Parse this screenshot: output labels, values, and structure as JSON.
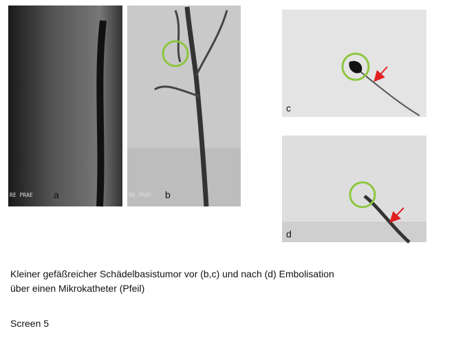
{
  "panels": [
    {
      "label": "a",
      "overlay_text": "RE PRAE"
    },
    {
      "label": "b",
      "overlay_text": "RE PRAE"
    },
    {
      "label": "c"
    },
    {
      "label": "d"
    }
  ],
  "caption": {
    "lines": [
      "Kleiner gefäßreicher Schädelbasistumor vor (b,c) und nach (d) Embolisation",
      "über einen Mikrokatheter (Pfeil)"
    ]
  },
  "footer": "Screen 5"
}
